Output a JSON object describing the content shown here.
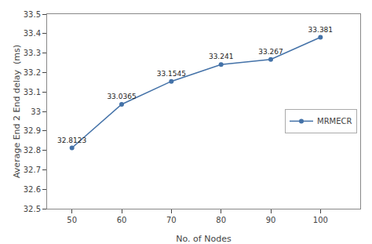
{
  "chart_data": {
    "type": "line",
    "x": [
      50,
      60,
      70,
      80,
      90,
      100
    ],
    "series": [
      {
        "name": "MRMECR",
        "color": "#4472a8",
        "marker": "circle",
        "values": [
          32.8123,
          33.0365,
          33.1545,
          33.241,
          33.267,
          33.381
        ]
      }
    ],
    "xlabel": "No. of Nodes",
    "ylabel": "Average End 2 End delay  (ms)",
    "xlim": [
      45,
      108
    ],
    "ylim": [
      32.5,
      33.5
    ],
    "xticks": [
      50,
      60,
      70,
      80,
      90,
      100
    ],
    "yticks": [
      32.5,
      32.6,
      32.7,
      32.8,
      32.9,
      33,
      33.1,
      33.2,
      33.3,
      33.4,
      33.5
    ],
    "grid": false,
    "legend": "right",
    "data_labels": true
  }
}
